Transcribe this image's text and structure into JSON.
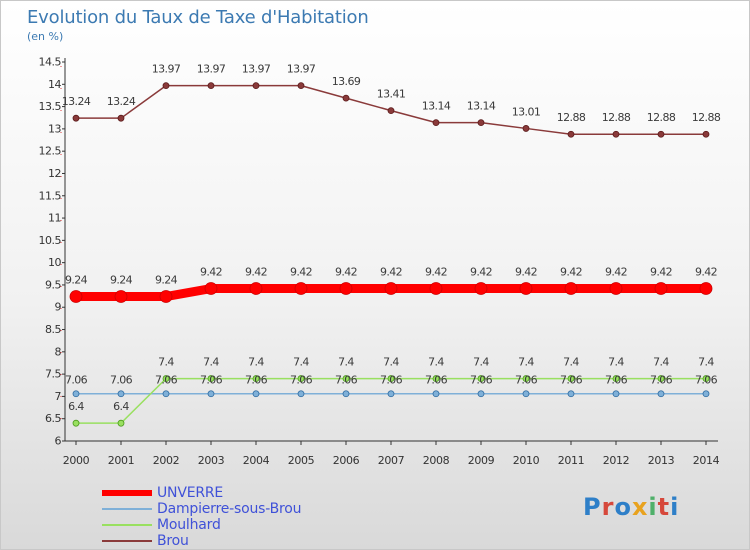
{
  "title": "Evolution du Taux de Taxe d'Habitation",
  "subtitle": "(en %)",
  "logo_text": "Proxiti",
  "logo_colors": [
    "#2e7fc8",
    "#d6483b",
    "#2e7fc8",
    "#e8a21e",
    "#4fb06a",
    "#d6483b",
    "#2e7fc8"
  ],
  "colors": {
    "UNVERRE": "#ff0000",
    "Dampierre-sous-Brou": "#7fb0d8",
    "Moulhard": "#99e060",
    "Brou": "#8a3a3a"
  },
  "chart_data": {
    "type": "line",
    "title": "Evolution du Taux de Taxe d'Habitation",
    "ylabel": "(en %)",
    "xlabel": "",
    "ylim": [
      6,
      14.5
    ],
    "y_ticks": [
      6,
      6.5,
      7,
      7.5,
      8,
      8.5,
      9,
      9.5,
      10,
      10.5,
      11,
      11.5,
      12,
      12.5,
      13,
      13.5,
      14,
      14.5
    ],
    "x": [
      "2000",
      "2001",
      "2002",
      "2003",
      "2004",
      "2005",
      "2006",
      "2007",
      "2008",
      "2009",
      "2010",
      "2011",
      "2012",
      "2013",
      "2014"
    ],
    "grid": false,
    "legend": "bottom-left",
    "series": [
      {
        "name": "UNVERRE",
        "values": [
          9.24,
          9.24,
          9.24,
          9.42,
          9.42,
          9.42,
          9.42,
          9.42,
          9.42,
          9.42,
          9.42,
          9.42,
          9.42,
          9.42,
          9.42
        ]
      },
      {
        "name": "Dampierre-sous-Brou",
        "values": [
          7.06,
          7.06,
          7.06,
          7.06,
          7.06,
          7.06,
          7.06,
          7.06,
          7.06,
          7.06,
          7.06,
          7.06,
          7.06,
          7.06,
          7.06
        ]
      },
      {
        "name": "Moulhard",
        "values": [
          6.4,
          6.4,
          7.4,
          7.4,
          7.4,
          7.4,
          7.4,
          7.4,
          7.4,
          7.4,
          7.4,
          7.4,
          7.4,
          7.4,
          7.4
        ]
      },
      {
        "name": "Brou",
        "values": [
          13.24,
          13.24,
          13.97,
          13.97,
          13.97,
          13.97,
          13.69,
          13.41,
          13.14,
          13.14,
          13.01,
          12.88,
          12.88,
          12.88,
          12.88
        ]
      }
    ]
  }
}
